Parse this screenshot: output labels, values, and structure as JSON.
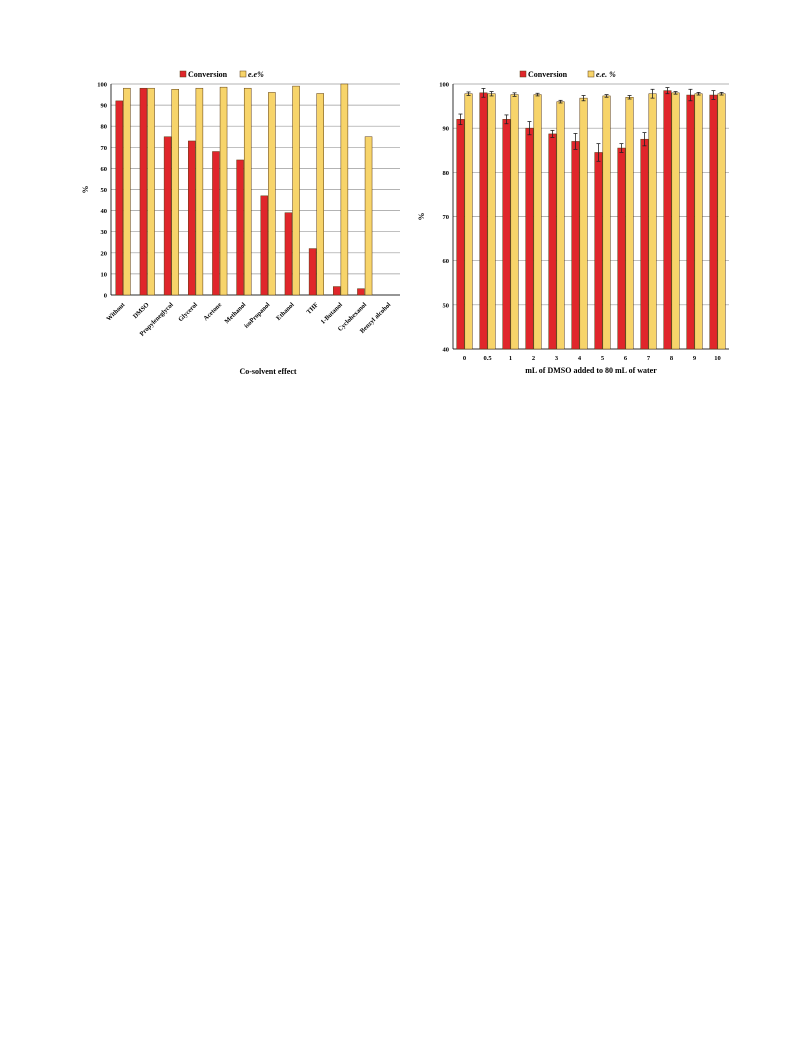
{
  "colors": {
    "conversion": "#e0262b",
    "ee": "#f7d46a",
    "bar_stroke": "#5a3a10",
    "grid": "#9a9a9a",
    "axis": "#000000"
  },
  "chart_data": [
    {
      "type": "bar",
      "title": "",
      "xlabel": "Co-solvent effect",
      "ylabel": "%",
      "ylim": [
        0,
        100
      ],
      "yticks": [
        0,
        10,
        20,
        30,
        40,
        50,
        60,
        70,
        80,
        90,
        100
      ],
      "grid": true,
      "legend_position": "top",
      "categories": [
        "Without",
        "DMSO",
        "Propyleneglycol",
        "Glycerol",
        "Acetone",
        "Methanol",
        "isoPropanol",
        "Ethanol",
        "THF",
        "1-Butanol",
        "Cyclohexanol",
        "Benzyl alcohol"
      ],
      "series": [
        {
          "name": "Conversion",
          "values": [
            92,
            98,
            75,
            73,
            68,
            64,
            47,
            39,
            22,
            4,
            3,
            0
          ]
        },
        {
          "name": "e.e%",
          "values": [
            98,
            98,
            97.5,
            98,
            98.5,
            98,
            96,
            99,
            95.5,
            100,
            75,
            null
          ]
        }
      ]
    },
    {
      "type": "bar",
      "title": "",
      "xlabel": "mL of DMSO added to 80 mL of water",
      "ylabel": "%",
      "ylim": [
        40,
        100
      ],
      "yticks": [
        40,
        50,
        60,
        70,
        80,
        90,
        100
      ],
      "grid": true,
      "legend_position": "top",
      "categories": [
        "0",
        "0.5",
        "1",
        "2",
        "3",
        "4",
        "5",
        "6",
        "7",
        "8",
        "9",
        "10"
      ],
      "series": [
        {
          "name": "Conversion",
          "values": [
            92,
            98,
            92,
            90,
            88.7,
            87,
            84.5,
            85.5,
            87.5,
            98.5,
            97.5,
            97.5
          ],
          "errors": [
            1.2,
            1,
            1,
            1.5,
            0.8,
            1.8,
            2,
            1,
            1.5,
            0.7,
            1.3,
            1
          ]
        },
        {
          "name": "e.e. %",
          "values": [
            97.8,
            97.8,
            97.6,
            97.6,
            96,
            96.8,
            97.3,
            97,
            97.8,
            98,
            97.8,
            97.8
          ],
          "errors": [
            0.4,
            0.5,
            0.4,
            0.3,
            0.3,
            0.6,
            0.3,
            0.4,
            1,
            0.3,
            0.3,
            0.3
          ]
        }
      ]
    }
  ]
}
